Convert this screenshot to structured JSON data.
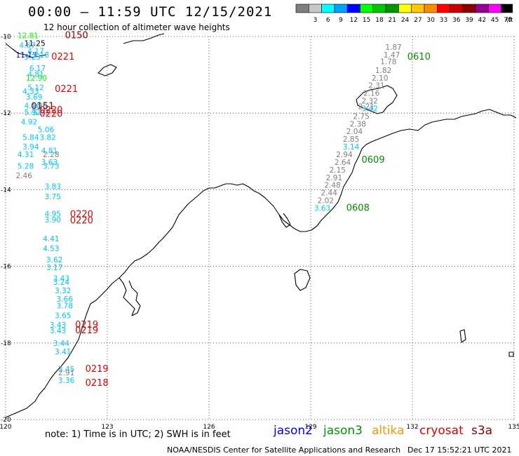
{
  "header": {
    "title": "00:00 – 11:59 UTC 12/15/2021",
    "subtitle": "12 hour collection of altimeter wave heights"
  },
  "colorscale": {
    "unit": "(ft)",
    "bins": [
      {
        "label": "",
        "color": "#7f7f7f"
      },
      {
        "label": "3",
        "color": "#c8c8c8"
      },
      {
        "label": "6",
        "color": "#00ffff"
      },
      {
        "label": "9",
        "color": "#00a0ff"
      },
      {
        "label": "12",
        "color": "#0000ff"
      },
      {
        "label": "15",
        "color": "#00ff00"
      },
      {
        "label": "18",
        "color": "#00c800"
      },
      {
        "label": "21",
        "color": "#009600"
      },
      {
        "label": "24",
        "color": "#ffff00"
      },
      {
        "label": "27",
        "color": "#ffc800"
      },
      {
        "label": "30",
        "color": "#ff8c00"
      },
      {
        "label": "33",
        "color": "#ff0000"
      },
      {
        "label": "36",
        "color": "#c80000"
      },
      {
        "label": "39",
        "color": "#8c0000"
      },
      {
        "label": "42",
        "color": "#960096"
      },
      {
        "label": "45",
        "color": "#ff00ff"
      },
      {
        "label": "70",
        "color": "#000000"
      }
    ]
  },
  "map": {
    "lon_range": [
      120,
      135
    ],
    "lat_range": [
      -20,
      -10
    ],
    "x_ticks": [
      "120",
      "123",
      "126",
      "129",
      "132",
      "135"
    ],
    "y_ticks": [
      "-10",
      "-12",
      "-14",
      "-16",
      "-18",
      "-20"
    ],
    "grid": "dotted"
  },
  "observations": [
    {
      "lon": 120.35,
      "lat": -10.05,
      "text": "12.81",
      "color": "#00ff00"
    },
    {
      "lon": 120.55,
      "lat": -10.25,
      "text": "11.25",
      "color": "#000000"
    },
    {
      "lon": 120.4,
      "lat": -10.3,
      "text": "4.67",
      "color": "#00c8ff"
    },
    {
      "lon": 120.65,
      "lat": -10.45,
      "text": "4.17",
      "color": "#00c8ff"
    },
    {
      "lon": 120.3,
      "lat": -10.55,
      "text": "11.13",
      "color": "#0000ff"
    },
    {
      "lon": 120.55,
      "lat": -10.6,
      "text": "5.23",
      "color": "#00c8ff"
    },
    {
      "lon": 120.8,
      "lat": -10.55,
      "text": "5.18",
      "color": "#00c8ff"
    },
    {
      "lon": 120.7,
      "lat": -10.9,
      "text": "6.17",
      "color": "#00c8ff"
    },
    {
      "lon": 120.65,
      "lat": -11.05,
      "text": "4.81",
      "color": "#00c8ff"
    },
    {
      "lon": 120.6,
      "lat": -11.15,
      "text": "12.90",
      "color": "#00ff00"
    },
    {
      "lon": 120.65,
      "lat": -11.4,
      "text": "5.12",
      "color": "#00c8ff"
    },
    {
      "lon": 120.5,
      "lat": -11.5,
      "text": "4.33",
      "color": "#00c8ff"
    },
    {
      "lon": 120.6,
      "lat": -11.65,
      "text": "3.69",
      "color": "#00c8ff"
    },
    {
      "lon": 120.55,
      "lat": -11.88,
      "text": "4.16",
      "color": "#00c8ff"
    },
    {
      "lon": 120.75,
      "lat": -11.88,
      "text": "4.86",
      "color": "#00c8ff"
    },
    {
      "lon": 120.55,
      "lat": -12.05,
      "text": "5.92",
      "color": "#00c8ff"
    },
    {
      "lon": 120.8,
      "lat": -12.05,
      "text": "5.07",
      "color": "#00c8ff"
    },
    {
      "lon": 120.45,
      "lat": -12.3,
      "text": "4.92",
      "color": "#00c8ff"
    },
    {
      "lon": 120.95,
      "lat": -12.5,
      "text": "5.06",
      "color": "#00c8ff"
    },
    {
      "lon": 120.5,
      "lat": -12.7,
      "text": "5.84",
      "color": "#00c8ff"
    },
    {
      "lon": 121.0,
      "lat": -12.7,
      "text": "3.82",
      "color": "#00c8ff"
    },
    {
      "lon": 120.5,
      "lat": -12.95,
      "text": "3.94",
      "color": "#00c8ff"
    },
    {
      "lon": 121.05,
      "lat": -13.05,
      "text": "4.81",
      "color": "#00c8ff"
    },
    {
      "lon": 120.35,
      "lat": -13.15,
      "text": "4.31",
      "color": "#00c8ff"
    },
    {
      "lon": 121.1,
      "lat": -13.15,
      "text": "2.28",
      "color": "#7f7f7f"
    },
    {
      "lon": 121.05,
      "lat": -13.35,
      "text": "3.63",
      "color": "#00c8ff"
    },
    {
      "lon": 120.35,
      "lat": -13.45,
      "text": "5.28",
      "color": "#00c8ff"
    },
    {
      "lon": 121.1,
      "lat": -13.45,
      "text": "3.73",
      "color": "#00c8ff"
    },
    {
      "lon": 120.3,
      "lat": -13.7,
      "text": "2.46",
      "color": "#7f7f7f"
    },
    {
      "lon": 121.15,
      "lat": -13.98,
      "text": "3.83",
      "color": "#00c8ff"
    },
    {
      "lon": 121.15,
      "lat": -14.25,
      "text": "3.75",
      "color": "#00c8ff"
    },
    {
      "lon": 121.15,
      "lat": -14.7,
      "text": "4.95",
      "color": "#00c8ff"
    },
    {
      "lon": 121.15,
      "lat": -14.85,
      "text": "3.90",
      "color": "#00c8ff"
    },
    {
      "lon": 121.1,
      "lat": -15.35,
      "text": "4.41",
      "color": "#00c8ff"
    },
    {
      "lon": 121.1,
      "lat": -15.6,
      "text": "4.53",
      "color": "#00c8ff"
    },
    {
      "lon": 121.2,
      "lat": -15.9,
      "text": "3.62",
      "color": "#00c8ff"
    },
    {
      "lon": 121.2,
      "lat": -16.1,
      "text": "3.17",
      "color": "#00c8ff"
    },
    {
      "lon": 121.4,
      "lat": -16.38,
      "text": "3.43",
      "color": "#00c8ff"
    },
    {
      "lon": 121.4,
      "lat": -16.48,
      "text": "3.24",
      "color": "#00c8ff"
    },
    {
      "lon": 121.45,
      "lat": -16.7,
      "text": "3.32",
      "color": "#00c8ff"
    },
    {
      "lon": 121.5,
      "lat": -16.92,
      "text": "3.66",
      "color": "#00c8ff"
    },
    {
      "lon": 121.5,
      "lat": -17.1,
      "text": "3.78",
      "color": "#00c8ff"
    },
    {
      "lon": 121.45,
      "lat": -17.35,
      "text": "3.65",
      "color": "#00c8ff"
    },
    {
      "lon": 121.3,
      "lat": -17.6,
      "text": "3.43",
      "color": "#00c8ff"
    },
    {
      "lon": 121.3,
      "lat": -17.75,
      "text": "3.43",
      "color": "#00c8ff"
    },
    {
      "lon": 121.4,
      "lat": -18.08,
      "text": "3.44",
      "color": "#00c8ff"
    },
    {
      "lon": 121.45,
      "lat": -18.3,
      "text": "3.41",
      "color": "#00c8ff"
    },
    {
      "lon": 121.55,
      "lat": -18.75,
      "text": "3.45",
      "color": "#00c8ff"
    },
    {
      "lon": 121.55,
      "lat": -18.85,
      "text": "2.91",
      "color": "#7f7f7f"
    },
    {
      "lon": 121.55,
      "lat": -19.05,
      "text": "3.36",
      "color": "#00c8ff"
    },
    {
      "lon": 131.2,
      "lat": -10.35,
      "text": "1.87",
      "color": "#7f7f7f"
    },
    {
      "lon": 131.15,
      "lat": -10.55,
      "text": "1.47",
      "color": "#7f7f7f"
    },
    {
      "lon": 131.05,
      "lat": -10.72,
      "text": "1.78",
      "color": "#7f7f7f"
    },
    {
      "lon": 130.9,
      "lat": -10.95,
      "text": "1.82",
      "color": "#7f7f7f"
    },
    {
      "lon": 130.8,
      "lat": -11.15,
      "text": "2.10",
      "color": "#7f7f7f"
    },
    {
      "lon": 130.7,
      "lat": -11.35,
      "text": "2.31",
      "color": "#7f7f7f"
    },
    {
      "lon": 130.55,
      "lat": -11.55,
      "text": "2.16",
      "color": "#7f7f7f"
    },
    {
      "lon": 130.5,
      "lat": -11.75,
      "text": "2.32",
      "color": "#7f7f7f"
    },
    {
      "lon": 130.4,
      "lat": -11.9,
      "text": "2.21",
      "color": "#7f7f7f"
    },
    {
      "lon": 130.5,
      "lat": -11.95,
      "text": "3.42",
      "color": "#00c8ff"
    },
    {
      "lon": 130.25,
      "lat": -12.15,
      "text": "2.75",
      "color": "#7f7f7f"
    },
    {
      "lon": 130.15,
      "lat": -12.35,
      "text": "2.38",
      "color": "#7f7f7f"
    },
    {
      "lon": 130.05,
      "lat": -12.55,
      "text": "2.04",
      "color": "#7f7f7f"
    },
    {
      "lon": 129.95,
      "lat": -12.75,
      "text": "2.85",
      "color": "#7f7f7f"
    },
    {
      "lon": 129.95,
      "lat": -12.95,
      "text": "3.14",
      "color": "#00c8ff"
    },
    {
      "lon": 129.75,
      "lat": -13.15,
      "text": "2.94",
      "color": "#7f7f7f"
    },
    {
      "lon": 129.7,
      "lat": -13.35,
      "text": "2.64",
      "color": "#7f7f7f"
    },
    {
      "lon": 129.55,
      "lat": -13.55,
      "text": "2.15",
      "color": "#7f7f7f"
    },
    {
      "lon": 129.45,
      "lat": -13.75,
      "text": "2.91",
      "color": "#7f7f7f"
    },
    {
      "lon": 129.4,
      "lat": -13.95,
      "text": "2.48",
      "color": "#7f7f7f"
    },
    {
      "lon": 129.3,
      "lat": -14.15,
      "text": "2.44",
      "color": "#7f7f7f"
    },
    {
      "lon": 129.2,
      "lat": -14.35,
      "text": "2.02",
      "color": "#7f7f7f"
    },
    {
      "lon": 129.1,
      "lat": -14.55,
      "text": "3.63",
      "color": "#00c8ff"
    }
  ],
  "pass_times": [
    {
      "lon": 121.75,
      "lat": -10.05,
      "text": "0150",
      "color": "#8c0000"
    },
    {
      "lon": 121.35,
      "lat": -10.6,
      "text": "0221",
      "color": "#e60000"
    },
    {
      "lon": 121.45,
      "lat": -11.45,
      "text": "0221",
      "color": "#e60000"
    },
    {
      "lon": 120.75,
      "lat": -11.9,
      "text": "0151",
      "color": "#8c0000"
    },
    {
      "lon": 121.0,
      "lat": -12.0,
      "text": "0220",
      "color": "#e60000"
    },
    {
      "lon": 121.0,
      "lat": -12.1,
      "text": "0220",
      "color": "#e60000"
    },
    {
      "lon": 121.9,
      "lat": -14.72,
      "text": "0220",
      "color": "#e60000"
    },
    {
      "lon": 121.9,
      "lat": -14.88,
      "text": "0220",
      "color": "#e60000"
    },
    {
      "lon": 122.05,
      "lat": -17.6,
      "text": "0219",
      "color": "#e60000"
    },
    {
      "lon": 122.05,
      "lat": -17.75,
      "text": "0219",
      "color": "#e60000"
    },
    {
      "lon": 122.35,
      "lat": -18.75,
      "text": "0219",
      "color": "#e60000"
    },
    {
      "lon": 122.35,
      "lat": -19.12,
      "text": "0218",
      "color": "#e60000"
    },
    {
      "lon": 131.85,
      "lat": -10.6,
      "text": "0610",
      "color": "#008c00"
    },
    {
      "lon": 130.5,
      "lat": -13.3,
      "text": "0609",
      "color": "#008c00"
    },
    {
      "lon": 130.05,
      "lat": -14.55,
      "text": "0608",
      "color": "#008c00"
    }
  ],
  "footer": {
    "note": "note: 1) Time is in UTC; 2) SWH is in feet",
    "satellites": [
      {
        "name": "jason2",
        "color": "#0000ff"
      },
      {
        "name": "jason3",
        "color": "#009600"
      },
      {
        "name": "altika",
        "color": "#ff9600"
      },
      {
        "name": "cryosat",
        "color": "#e60000"
      },
      {
        "name": "s3a",
        "color": "#8c0000"
      }
    ],
    "credit": "NOAA/NESDIS Center for Satellite Applications and Research",
    "timestamp": "Dec 17 15:52:21 UTC 2021"
  }
}
